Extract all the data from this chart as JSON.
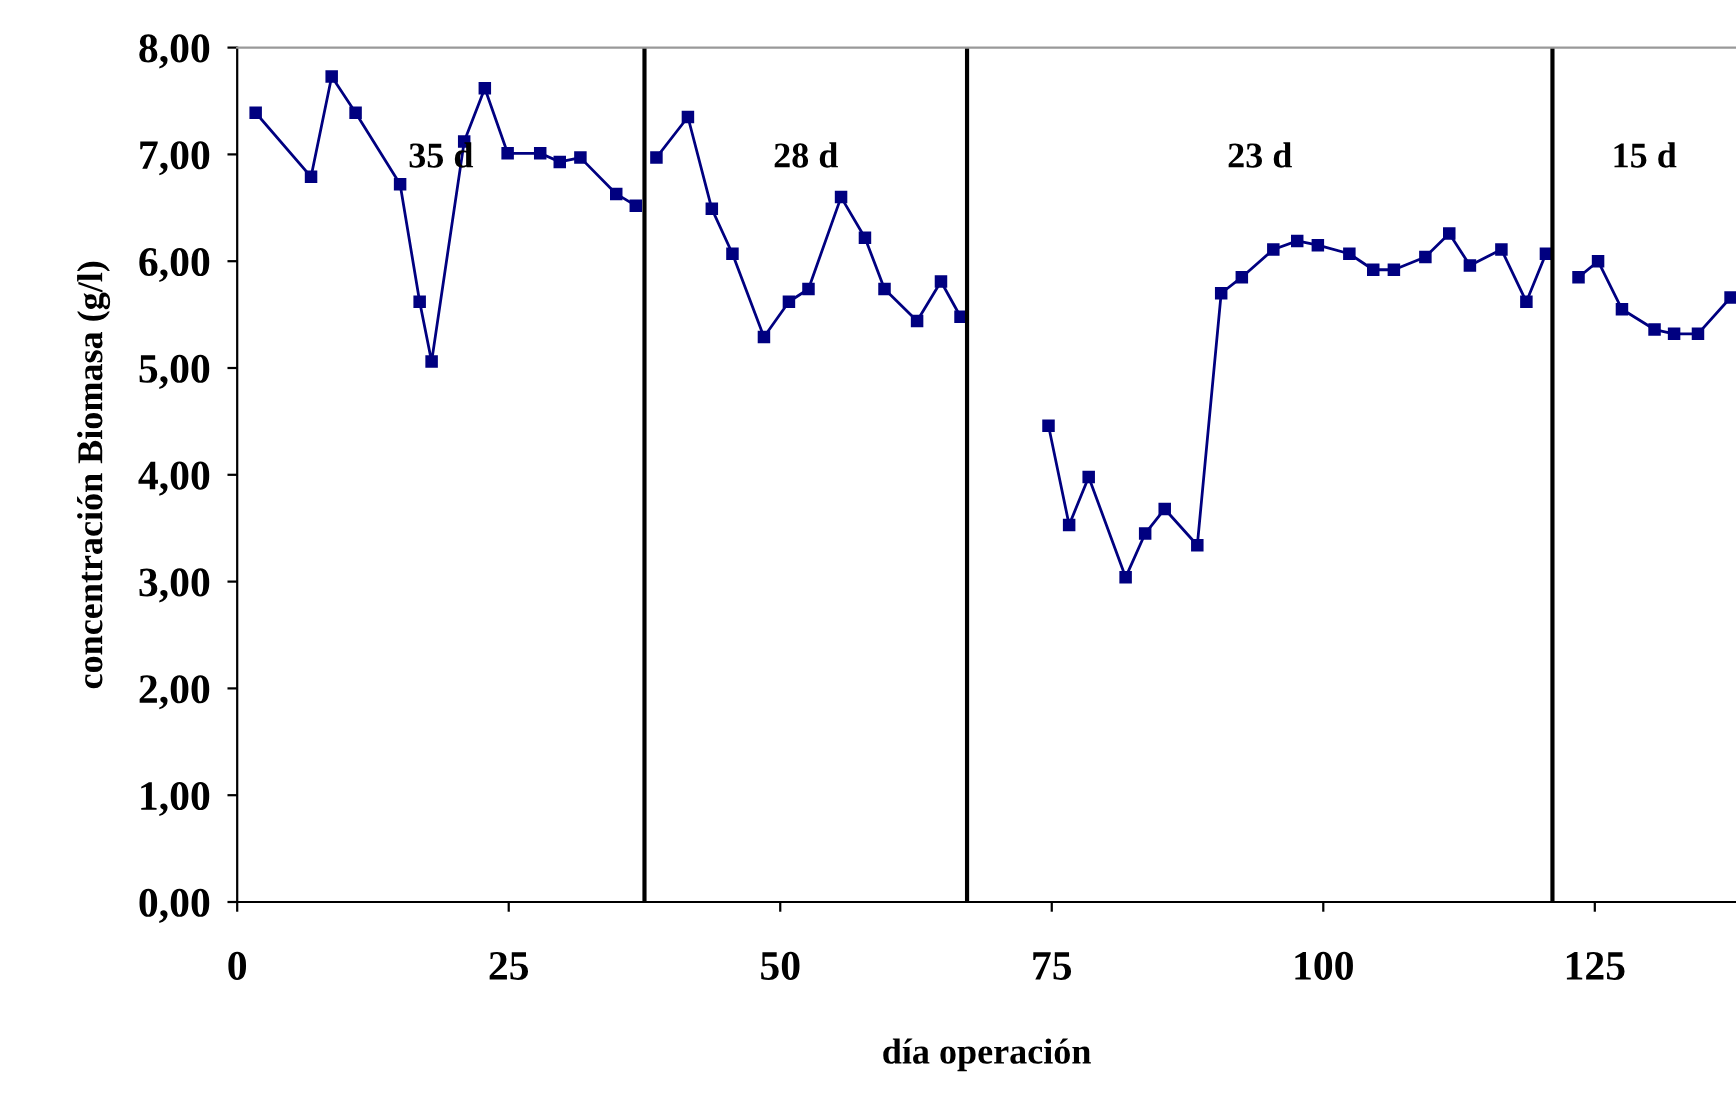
{
  "chart_data": {
    "type": "line",
    "xlabel": "día operación",
    "ylabel": "concentración Biomasa (g/l)",
    "x": [
      1.7,
      6.8,
      8.7,
      10.9,
      15.0,
      16.8,
      17.9,
      20.9,
      22.8,
      24.9,
      27.9,
      29.7,
      31.6,
      34.9,
      36.7,
      37.5,
      38.6,
      41.5,
      43.7,
      45.6,
      48.5,
      50.8,
      52.6,
      55.6,
      57.8,
      59.6,
      62.6,
      64.8,
      66.6,
      67.2,
      74.7,
      76.6,
      78.4,
      81.8,
      83.6,
      85.4,
      88.4,
      90.6,
      92.5,
      95.4,
      97.6,
      99.5,
      102.4,
      104.6,
      106.5,
      109.4,
      111.6,
      113.5,
      116.4,
      118.7,
      120.5,
      121.1,
      123.5,
      125.3,
      127.5,
      130.5,
      132.3,
      134.5,
      137.5
    ],
    "series": [
      {
        "color": "#000080",
        "values": [
          7.39,
          6.79,
          7.73,
          7.39,
          6.72,
          5.62,
          5.06,
          7.12,
          7.62,
          7.01,
          7.01,
          6.93,
          6.97,
          6.63,
          6.52,
          null,
          6.97,
          7.35,
          6.49,
          6.07,
          5.29,
          5.62,
          5.74,
          6.6,
          6.22,
          5.74,
          5.44,
          5.81,
          5.48,
          null,
          4.46,
          3.53,
          3.98,
          3.04,
          3.45,
          3.68,
          3.34,
          5.7,
          5.85,
          6.11,
          6.19,
          6.15,
          6.07,
          5.92,
          5.92,
          6.04,
          6.26,
          5.96,
          6.11,
          5.62,
          6.07,
          null,
          5.85,
          6.0,
          5.55,
          5.36,
          5.32,
          5.32,
          5.66
        ]
      }
    ],
    "marker": "square",
    "line_style": "solid",
    "grid": false,
    "legend": false,
    "xlim": [
      0,
      138
    ],
    "xticks": [
      0,
      25,
      50,
      75,
      100,
      125
    ],
    "ylim": [
      0,
      8
    ],
    "yticks": [
      {
        "value": 0,
        "label": "0,00"
      },
      {
        "value": 1,
        "label": "1,00"
      },
      {
        "value": 2,
        "label": "2,00"
      },
      {
        "value": 3,
        "label": "3,00"
      },
      {
        "value": 4,
        "label": "4,00"
      },
      {
        "value": 5,
        "label": "5,00"
      },
      {
        "value": 6,
        "label": "6,00"
      },
      {
        "value": 7,
        "label": "7,00"
      },
      {
        "value": 8,
        "label": "8,00"
      }
    ],
    "ref_lines": [
      {
        "axis": "x",
        "value": 37.5,
        "color": "#000000"
      },
      {
        "axis": "x",
        "value": 67.2,
        "color": "#000000"
      },
      {
        "axis": "x",
        "value": 121.1,
        "color": "#000000"
      }
    ],
    "annotations": [
      "35 d",
      "28 d",
      "23 d",
      "15 d"
    ]
  }
}
